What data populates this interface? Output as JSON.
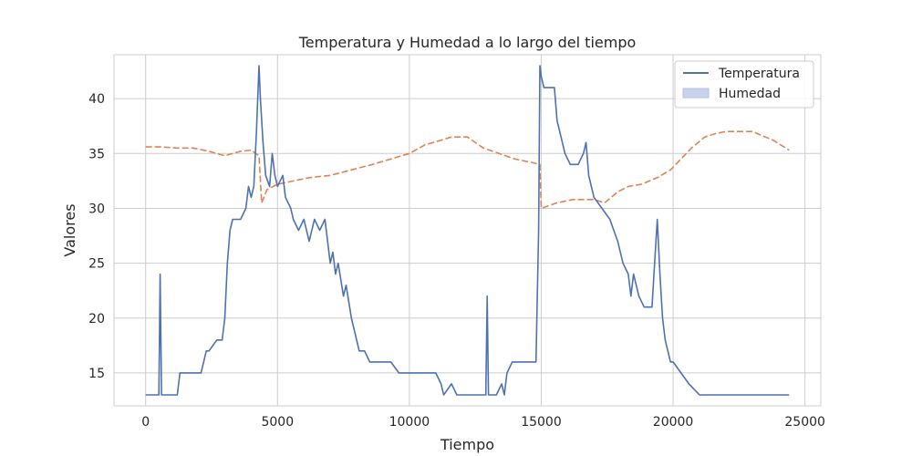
{
  "chart_data": {
    "type": "line",
    "title": "Temperatura y Humedad a lo largo del tiempo",
    "xlabel": "Tiempo",
    "ylabel": "Valores",
    "xlim": [
      -1200,
      25600
    ],
    "ylim": [
      12.0,
      44.0
    ],
    "xticks": [
      0,
      5000,
      10000,
      15000,
      20000,
      25000
    ],
    "xtick_labels": [
      "0",
      "5000",
      "10000",
      "15000",
      "20000",
      "25000"
    ],
    "yticks": [
      15,
      20,
      25,
      30,
      35,
      40
    ],
    "ytick_labels": [
      "15",
      "20",
      "25",
      "30",
      "35",
      "40"
    ],
    "grid": true,
    "legend_position": "top-right",
    "legend": [
      {
        "label": "Temperatura",
        "style": "line",
        "color": "#4c72b0"
      },
      {
        "label": "Humedad",
        "style": "patch",
        "color": "#c9d4ec"
      }
    ],
    "series": [
      {
        "name": "Temperatura",
        "color": "#4c72b0",
        "dash": "solid",
        "x": [
          0,
          500,
          550,
          600,
          1200,
          1300,
          2100,
          2200,
          2300,
          2400,
          2700,
          2900,
          3000,
          3100,
          3200,
          3300,
          3600,
          3800,
          3900,
          4000,
          4100,
          4200,
          4300,
          4350,
          4450,
          4550,
          4700,
          4800,
          4900,
          5000,
          5200,
          5300,
          5500,
          5600,
          5800,
          6000,
          6100,
          6200,
          6400,
          6600,
          6800,
          6900,
          7000,
          7100,
          7200,
          7300,
          7500,
          7600,
          7800,
          7900,
          8100,
          8300,
          8500,
          8700,
          8900,
          9300,
          9600,
          9700,
          10000,
          10500,
          11000,
          11200,
          11300,
          11600,
          11800,
          12000,
          12400,
          12900,
          12950,
          13000,
          13300,
          13500,
          13600,
          13700,
          13900,
          14300,
          14500,
          14800,
          14900,
          14950,
          15000,
          15100,
          15500,
          15600,
          15700,
          15900,
          16100,
          16400,
          16600,
          16700,
          16800,
          16900,
          17000,
          17300,
          17600,
          17900,
          18100,
          18300,
          18400,
          18500,
          18700,
          18900,
          19200,
          19400,
          19500,
          19600,
          19700,
          19800,
          19900,
          20000,
          20300,
          20600,
          21000,
          21100,
          21300,
          21500,
          22000,
          23000,
          24000,
          24400
        ],
        "y": [
          13,
          13,
          24,
          13,
          13,
          15,
          15,
          16,
          17,
          17,
          18,
          18,
          20,
          25,
          28,
          29,
          29,
          30,
          32,
          31,
          32,
          37,
          43,
          40,
          36,
          33,
          32,
          35,
          33,
          32,
          33,
          31,
          30,
          29,
          28,
          29,
          28,
          27,
          29,
          28,
          29,
          27,
          25,
          26,
          24,
          25,
          22,
          23,
          20,
          19,
          17,
          17,
          16,
          16,
          16,
          16,
          15,
          15,
          15,
          15,
          15,
          14,
          13,
          14,
          13,
          13,
          13,
          13,
          22,
          13,
          13,
          14,
          13,
          15,
          16,
          16,
          16,
          16,
          28,
          43,
          42,
          41,
          41,
          38,
          37,
          35,
          34,
          34,
          35,
          36,
          33,
          32,
          31,
          30,
          29,
          27,
          25,
          24,
          22,
          24,
          22,
          21,
          21,
          29,
          24,
          20,
          18,
          17,
          16,
          16,
          15,
          14,
          13,
          13,
          13,
          13,
          13,
          13,
          13,
          13
        ]
      },
      {
        "name": "Humedad",
        "color": "#dd8452",
        "dash": "dashed",
        "x": [
          0,
          600,
          1200,
          1800,
          2400,
          3000,
          3600,
          4000,
          4300,
          4400,
          4600,
          5000,
          5600,
          6200,
          7000,
          7800,
          8600,
          9300,
          10000,
          10600,
          11200,
          11600,
          12200,
          12800,
          13400,
          14000,
          14600,
          14950,
          15000,
          15600,
          16200,
          17000,
          17400,
          17900,
          18300,
          18800,
          19400,
          19900,
          20300,
          20700,
          21200,
          21600,
          22000,
          23000,
          23800,
          24400
        ],
        "y": [
          35.6,
          35.6,
          35.5,
          35.5,
          35.2,
          34.8,
          35.2,
          35.3,
          34.8,
          30.5,
          31.7,
          32.2,
          32.5,
          32.8,
          33.0,
          33.5,
          34.0,
          34.5,
          35.0,
          35.8,
          36.2,
          36.5,
          36.5,
          35.5,
          35.0,
          34.5,
          34.2,
          34.0,
          30.0,
          30.5,
          30.8,
          30.8,
          30.5,
          31.5,
          32.0,
          32.2,
          32.8,
          33.5,
          34.5,
          35.5,
          36.5,
          36.8,
          37.0,
          37.0,
          36.2,
          35.3
        ]
      }
    ]
  }
}
